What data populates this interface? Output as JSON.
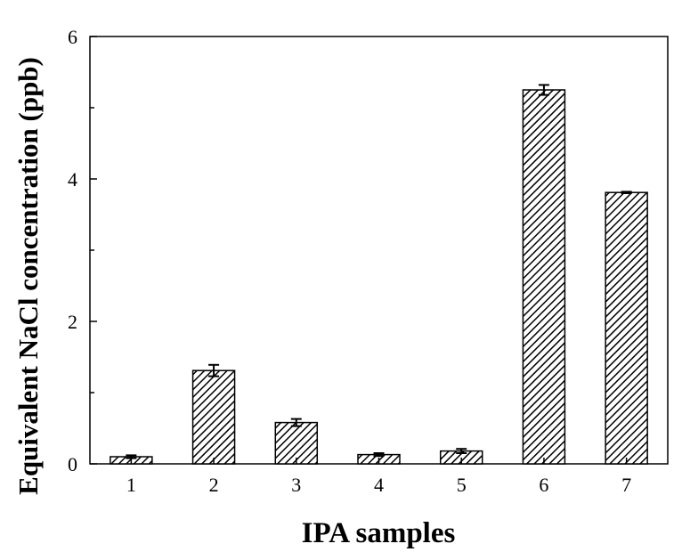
{
  "chart_data": {
    "type": "bar",
    "title": "",
    "xlabel": "IPA samples",
    "ylabel": "Equivalent NaCl concentration (ppb)",
    "categories": [
      "1",
      "2",
      "3",
      "4",
      "5",
      "6",
      "7"
    ],
    "values": [
      0.1,
      1.31,
      0.58,
      0.13,
      0.18,
      5.25,
      3.81
    ],
    "error_bars": [
      0.02,
      0.08,
      0.05,
      0.02,
      0.03,
      0.07,
      0.01
    ],
    "ylim": [
      0,
      6
    ],
    "yticks": [
      0,
      2,
      4,
      6
    ],
    "ytick_labels": [
      "0",
      "2",
      "4",
      "6"
    ],
    "grid": false,
    "bar_fill": "diagonal-hatch",
    "bar_color": "#000000"
  }
}
